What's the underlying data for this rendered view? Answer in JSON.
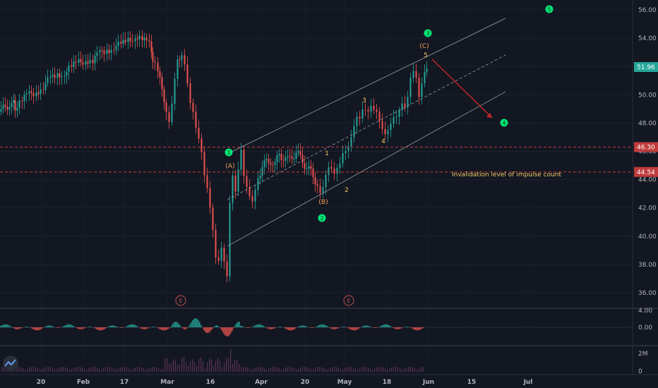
{
  "chart_data": {
    "type": "candlestick",
    "price_axis": {
      "ticks": [
        "56.00",
        "54.00",
        "52.00",
        "50.00",
        "48.00",
        "46.00",
        "44.00",
        "42.00",
        "40.00",
        "38.00",
        "36.00"
      ],
      "last_price": "51.96",
      "levels": [
        "46.30",
        "44.54"
      ]
    },
    "oscillator_axis": {
      "ticks": [
        "4.00",
        "0.00"
      ]
    },
    "volume_axis": {
      "ticks": [
        "2M",
        "0"
      ]
    },
    "x_ticks": [
      "20",
      "Feb",
      "17",
      "Mar",
      "16",
      "Apr",
      "20",
      "May",
      "18",
      "Jun",
      "15",
      "Jul"
    ],
    "price_series_approx": [
      [
        0,
        48.8
      ],
      [
        12,
        49.4
      ],
      [
        20,
        49.2
      ],
      [
        30,
        49.6
      ],
      [
        40,
        49.9
      ],
      [
        50,
        50.3
      ],
      [
        60,
        50.6
      ],
      [
        70,
        51.0
      ],
      [
        80,
        51.4
      ],
      [
        90,
        51.7
      ],
      [
        100,
        51.9
      ],
      [
        110,
        52.2
      ],
      [
        120,
        52.6
      ],
      [
        130,
        52.4
      ],
      [
        140,
        52.8
      ],
      [
        150,
        53.2
      ],
      [
        160,
        53.5
      ],
      [
        170,
        53.4
      ],
      [
        180,
        53.8
      ],
      [
        190,
        54.3
      ],
      [
        200,
        53.9
      ],
      [
        210,
        53.4
      ],
      [
        215,
        52.5
      ],
      [
        222,
        51.6
      ],
      [
        228,
        50.2
      ],
      [
        234,
        49.1
      ],
      [
        238,
        48.4
      ],
      [
        242,
        49.6
      ],
      [
        246,
        51.2
      ],
      [
        250,
        52.4
      ],
      [
        256,
        53.1
      ],
      [
        260,
        52.5
      ],
      [
        264,
        51.1
      ],
      [
        268,
        49.6
      ],
      [
        272,
        48.8
      ],
      [
        276,
        47.5
      ],
      [
        280,
        46.6
      ],
      [
        284,
        45.6
      ],
      [
        288,
        44.0
      ],
      [
        292,
        43.2
      ],
      [
        296,
        42.0
      ],
      [
        300,
        40.6
      ],
      [
        304,
        38.8
      ],
      [
        308,
        38.6
      ],
      [
        312,
        39.5
      ],
      [
        316,
        38.4
      ],
      [
        320,
        37.2
      ],
      [
        324,
        42.2
      ],
      [
        328,
        44.0
      ],
      [
        332,
        42.8
      ],
      [
        336,
        44.4
      ],
      [
        340,
        45.9
      ],
      [
        344,
        44.2
      ],
      [
        348,
        43.6
      ],
      [
        352,
        43.1
      ],
      [
        356,
        42.8
      ],
      [
        360,
        43.6
      ],
      [
        364,
        44.3
      ],
      [
        370,
        44.9
      ],
      [
        376,
        45.2
      ],
      [
        382,
        45.4
      ],
      [
        388,
        45.0
      ],
      [
        394,
        45.8
      ],
      [
        400,
        45.6
      ],
      [
        406,
        45.3
      ],
      [
        412,
        45.7
      ],
      [
        418,
        45.9
      ],
      [
        424,
        45.5
      ],
      [
        430,
        45.1
      ],
      [
        436,
        44.7
      ],
      [
        442,
        44.2
      ],
      [
        448,
        43.8
      ],
      [
        452,
        43.4
      ],
      [
        456,
        43.8
      ],
      [
        460,
        44.6
      ],
      [
        464,
        45.0
      ],
      [
        468,
        44.7
      ],
      [
        472,
        44.2
      ],
      [
        476,
        44.5
      ],
      [
        480,
        44.8
      ],
      [
        484,
        45.6
      ],
      [
        488,
        45.9
      ],
      [
        492,
        46.4
      ],
      [
        496,
        47.2
      ],
      [
        500,
        48.1
      ],
      [
        504,
        48.8
      ],
      [
        508,
        48.6
      ],
      [
        512,
        49.1
      ],
      [
        516,
        48.9
      ],
      [
        520,
        48.6
      ],
      [
        524,
        48.9
      ],
      [
        528,
        48.6
      ],
      [
        532,
        48.5
      ],
      [
        536,
        48.0
      ],
      [
        540,
        47.6
      ],
      [
        544,
        47.4
      ],
      [
        548,
        47.8
      ],
      [
        552,
        48.3
      ],
      [
        556,
        48.7
      ],
      [
        560,
        48.6
      ],
      [
        564,
        48.9
      ],
      [
        568,
        49.2
      ],
      [
        572,
        48.8
      ],
      [
        576,
        49.5
      ],
      [
        580,
        50.9
      ],
      [
        584,
        51.5
      ],
      [
        588,
        51.2
      ],
      [
        592,
        50.0
      ],
      [
        596,
        51.1
      ],
      [
        600,
        51.96
      ]
    ],
    "annotations": {
      "labels": [
        "1",
        "(A)",
        "2",
        "(B)",
        "3",
        "(C)",
        "4",
        "5",
        "1",
        "2",
        "3",
        "4",
        "5"
      ],
      "note": "Invalidation level of impulse count",
      "event_marker": "E"
    },
    "colors": {
      "background": "#131722",
      "up": "#26a69a",
      "down": "#ef5350",
      "wave_green": "#00e676",
      "wave_orange": "#f7a156",
      "wave_yellow": "#f2c864",
      "level_line": "#c03b3b",
      "projection": "#c62828",
      "channel": "#9598a1"
    }
  }
}
